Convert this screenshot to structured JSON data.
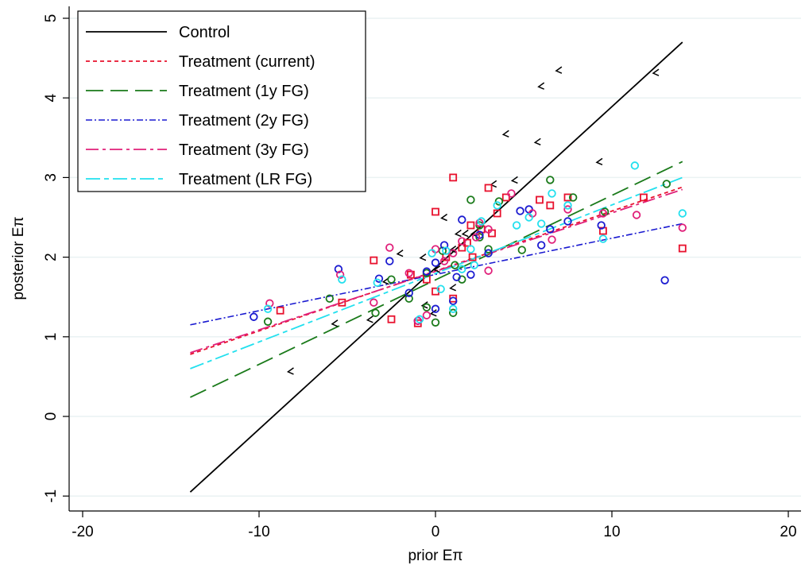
{
  "chart_data": {
    "type": "scatter",
    "xlabel": "prior Eπ",
    "ylabel": "posterior Eπ",
    "xlim": [
      -20,
      20
    ],
    "ylim": [
      -1,
      5
    ],
    "xticks": [
      "-20",
      "-10",
      "0",
      "10",
      "20"
    ],
    "xtick_values": [
      -20,
      -10,
      0,
      10,
      20
    ],
    "yticks": [
      "-1",
      "0",
      "1",
      "2",
      "3",
      "4",
      "5"
    ],
    "ytick_values": [
      -1,
      0,
      1,
      2,
      3,
      4,
      5
    ],
    "grid": "horizontal",
    "legend_position": "top-left",
    "series": [
      {
        "name": "Control",
        "color": "#000000",
        "marker": "check",
        "line": [
          [
            -13.9,
            -0.95
          ],
          [
            14.0,
            4.7
          ]
        ],
        "points": [
          [
            12.5,
            4.32
          ],
          [
            7.0,
            4.35
          ],
          [
            6.0,
            4.15
          ],
          [
            4.0,
            3.55
          ],
          [
            5.8,
            3.45
          ],
          [
            9.3,
            3.2
          ],
          [
            4.5,
            2.97
          ],
          [
            3.3,
            2.92
          ],
          [
            0.5,
            2.5
          ],
          [
            1.3,
            2.3
          ],
          [
            1.7,
            2.3
          ],
          [
            2.2,
            2.3
          ],
          [
            1.0,
            2.1
          ],
          [
            -2.0,
            2.05
          ],
          [
            -0.7,
            2.0
          ],
          [
            0.1,
            1.85
          ],
          [
            -2.8,
            1.7
          ],
          [
            -0.6,
            1.4
          ],
          [
            -3.7,
            1.22
          ],
          [
            -5.7,
            1.17
          ],
          [
            -0.1,
            1.3
          ],
          [
            1.0,
            1.62
          ],
          [
            -8.2,
            0.57
          ]
        ]
      },
      {
        "name": "Treatment (current)",
        "color": "#e8112d",
        "marker": "square",
        "line": [
          [
            -13.9,
            0.78
          ],
          [
            14.0,
            2.88
          ]
        ],
        "points": [
          [
            1.0,
            3.0
          ],
          [
            3.0,
            2.87
          ],
          [
            0.0,
            2.57
          ],
          [
            3.5,
            2.55
          ],
          [
            5.9,
            2.72
          ],
          [
            7.5,
            2.75
          ],
          [
            6.5,
            2.65
          ],
          [
            2.0,
            2.4
          ],
          [
            2.6,
            2.35
          ],
          [
            3.2,
            2.3
          ],
          [
            1.5,
            2.12
          ],
          [
            1.8,
            2.18
          ],
          [
            -3.5,
            1.96
          ],
          [
            -1.4,
            1.78
          ],
          [
            -0.5,
            1.72
          ],
          [
            -5.3,
            1.43
          ],
          [
            -8.8,
            1.33
          ],
          [
            -2.5,
            1.22
          ],
          [
            -1.0,
            1.17
          ],
          [
            0.0,
            1.57
          ],
          [
            1.0,
            1.48
          ],
          [
            4.0,
            2.75
          ],
          [
            9.5,
            2.33
          ],
          [
            11.8,
            2.75
          ],
          [
            14.0,
            2.11
          ],
          [
            2.1,
            2.0
          ],
          [
            0.6,
            2.0
          ]
        ]
      },
      {
        "name": "Treatment (1y FG)",
        "color": "#1a7a1a",
        "marker": "circle",
        "line": [
          [
            -13.9,
            0.24
          ],
          [
            14.0,
            3.2
          ]
        ],
        "points": [
          [
            6.5,
            2.97
          ],
          [
            7.8,
            2.75
          ],
          [
            2.0,
            2.72
          ],
          [
            3.6,
            2.7
          ],
          [
            13.1,
            2.92
          ],
          [
            2.5,
            2.4
          ],
          [
            0.4,
            2.08
          ],
          [
            4.9,
            2.09
          ],
          [
            9.6,
            2.57
          ],
          [
            1.1,
            1.9
          ],
          [
            -0.5,
            1.8
          ],
          [
            -2.5,
            1.72
          ],
          [
            -1.5,
            1.48
          ],
          [
            -6.0,
            1.48
          ],
          [
            -3.4,
            1.3
          ],
          [
            -9.5,
            1.19
          ],
          [
            -0.5,
            1.37
          ],
          [
            0.0,
            1.18
          ],
          [
            1.0,
            1.3
          ],
          [
            1.5,
            1.72
          ],
          [
            2.5,
            2.25
          ],
          [
            3.0,
            2.1
          ]
        ]
      },
      {
        "name": "Treatment (2y FG)",
        "color": "#1a1ad0",
        "marker": "circle",
        "line": [
          [
            -13.9,
            1.15
          ],
          [
            14.0,
            2.42
          ]
        ],
        "points": [
          [
            -10.3,
            1.25
          ],
          [
            -5.5,
            1.85
          ],
          [
            -2.6,
            1.95
          ],
          [
            -3.2,
            1.73
          ],
          [
            -1.5,
            1.55
          ],
          [
            0.0,
            1.93
          ],
          [
            0.5,
            2.15
          ],
          [
            1.5,
            2.47
          ],
          [
            2.5,
            2.28
          ],
          [
            4.8,
            2.58
          ],
          [
            5.3,
            2.6
          ],
          [
            6.5,
            2.35
          ],
          [
            7.5,
            2.45
          ],
          [
            9.4,
            2.4
          ],
          [
            13.0,
            1.71
          ],
          [
            0.0,
            1.35
          ],
          [
            -1.0,
            1.2
          ],
          [
            1.0,
            1.45
          ],
          [
            2.0,
            1.78
          ],
          [
            3.0,
            2.05
          ],
          [
            6.0,
            2.15
          ],
          [
            -0.5,
            1.82
          ],
          [
            1.2,
            1.75
          ]
        ]
      },
      {
        "name": "Treatment (3y FG)",
        "color": "#e0207a",
        "marker": "circle",
        "line": [
          [
            -13.9,
            0.8
          ],
          [
            14.0,
            2.85
          ]
        ],
        "points": [
          [
            -9.4,
            1.42
          ],
          [
            -5.4,
            1.78
          ],
          [
            -2.6,
            2.12
          ],
          [
            -1.5,
            1.8
          ],
          [
            -3.5,
            1.43
          ],
          [
            0.0,
            2.1
          ],
          [
            0.5,
            1.95
          ],
          [
            1.0,
            2.05
          ],
          [
            2.3,
            2.25
          ],
          [
            3.0,
            2.35
          ],
          [
            4.3,
            2.8
          ],
          [
            5.5,
            2.55
          ],
          [
            6.6,
            2.22
          ],
          [
            7.5,
            2.6
          ],
          [
            9.5,
            2.55
          ],
          [
            11.4,
            2.53
          ],
          [
            14.0,
            2.37
          ],
          [
            3.0,
            1.83
          ],
          [
            -0.5,
            1.27
          ],
          [
            -1.0,
            1.2
          ],
          [
            1.5,
            2.2
          ],
          [
            2.5,
            2.43
          ]
        ]
      },
      {
        "name": "Treatment (LR FG)",
        "color": "#22e0ee",
        "marker": "circle",
        "line": [
          [
            -13.9,
            0.6
          ],
          [
            14.0,
            3.0
          ]
        ],
        "points": [
          [
            -5.3,
            1.72
          ],
          [
            -9.5,
            1.35
          ],
          [
            -3.3,
            1.68
          ],
          [
            -0.9,
            1.22
          ],
          [
            0.3,
            1.6
          ],
          [
            1.0,
            1.35
          ],
          [
            1.5,
            1.85
          ],
          [
            2.0,
            2.1
          ],
          [
            2.6,
            2.45
          ],
          [
            3.5,
            2.65
          ],
          [
            4.6,
            2.4
          ],
          [
            5.3,
            2.5
          ],
          [
            6.0,
            2.42
          ],
          [
            6.6,
            2.8
          ],
          [
            7.5,
            2.65
          ],
          [
            9.5,
            2.23
          ],
          [
            11.3,
            3.15
          ],
          [
            14.0,
            2.55
          ],
          [
            0.6,
            2.08
          ],
          [
            -0.2,
            2.05
          ],
          [
            2.2,
            1.9
          ]
        ]
      }
    ]
  }
}
